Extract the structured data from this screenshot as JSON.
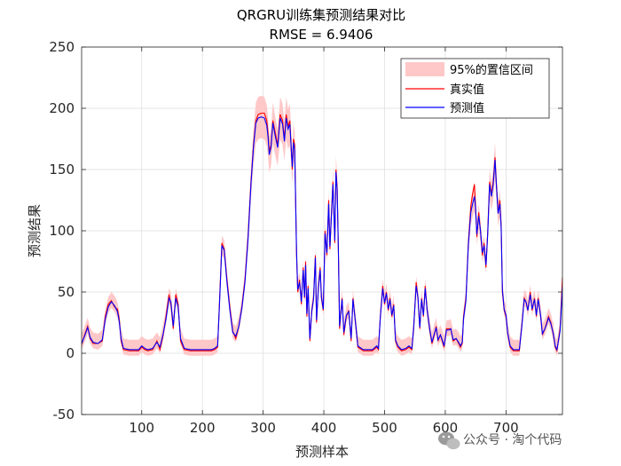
{
  "chart_data": {
    "type": "line",
    "title": "QRGRU训练集预测结果对比",
    "subtitle": "RMSE = 6.9406",
    "xlabel": "预测样本",
    "ylabel": "预测结果",
    "xlim": [
      1,
      793
    ],
    "ylim": [
      -50,
      250
    ],
    "xticks": [
      100,
      200,
      300,
      400,
      500,
      600,
      700
    ],
    "yticks": [
      -50,
      0,
      50,
      100,
      150,
      200,
      250
    ],
    "grid": true,
    "legend_position": "top-right",
    "legend": [
      {
        "label": "95%的置信区间",
        "kind": "band",
        "color": "#ffc8c8"
      },
      {
        "label": "真实值",
        "kind": "line",
        "color": "#ff0000"
      },
      {
        "label": "预测值",
        "kind": "line",
        "color": "#0000ff"
      }
    ],
    "true_values": [
      [
        1,
        7
      ],
      [
        6,
        15
      ],
      [
        11,
        22
      ],
      [
        15,
        12
      ],
      [
        20,
        8
      ],
      [
        28,
        8
      ],
      [
        35,
        10
      ],
      [
        40,
        30
      ],
      [
        45,
        40
      ],
      [
        50,
        43
      ],
      [
        55,
        38
      ],
      [
        60,
        36
      ],
      [
        63,
        28
      ],
      [
        66,
        10
      ],
      [
        70,
        3
      ],
      [
        80,
        2
      ],
      [
        95,
        2
      ],
      [
        100,
        5
      ],
      [
        105,
        3
      ],
      [
        110,
        2
      ],
      [
        118,
        3
      ],
      [
        125,
        10
      ],
      [
        130,
        3
      ],
      [
        135,
        14
      ],
      [
        140,
        30
      ],
      [
        145,
        48
      ],
      [
        148,
        40
      ],
      [
        152,
        20
      ],
      [
        156,
        48
      ],
      [
        160,
        40
      ],
      [
        164,
        10
      ],
      [
        170,
        3
      ],
      [
        180,
        2
      ],
      [
        200,
        2
      ],
      [
        215,
        2
      ],
      [
        220,
        3
      ],
      [
        225,
        5
      ],
      [
        228,
        40
      ],
      [
        232,
        90
      ],
      [
        236,
        85
      ],
      [
        240,
        62
      ],
      [
        245,
        38
      ],
      [
        250,
        18
      ],
      [
        255,
        12
      ],
      [
        260,
        22
      ],
      [
        265,
        38
      ],
      [
        270,
        60
      ],
      [
        275,
        95
      ],
      [
        280,
        140
      ],
      [
        284,
        170
      ],
      [
        288,
        190
      ],
      [
        292,
        195
      ],
      [
        297,
        196
      ],
      [
        302,
        196
      ],
      [
        306,
        190
      ],
      [
        308,
        180
      ],
      [
        310,
        165
      ],
      [
        313,
        170
      ],
      [
        316,
        190
      ],
      [
        320,
        180
      ],
      [
        324,
        170
      ],
      [
        328,
        195
      ],
      [
        332,
        190
      ],
      [
        335,
        175
      ],
      [
        338,
        195
      ],
      [
        341,
        185
      ],
      [
        344,
        190
      ],
      [
        348,
        150
      ],
      [
        350,
        175
      ],
      [
        352,
        170
      ],
      [
        355,
        80
      ],
      [
        357,
        50
      ],
      [
        360,
        60
      ],
      [
        363,
        40
      ],
      [
        366,
        70
      ],
      [
        368,
        45
      ],
      [
        370,
        75
      ],
      [
        372,
        30
      ],
      [
        374,
        55
      ],
      [
        377,
        10
      ],
      [
        380,
        35
      ],
      [
        383,
        45
      ],
      [
        386,
        80
      ],
      [
        388,
        25
      ],
      [
        391,
        55
      ],
      [
        394,
        70
      ],
      [
        396,
        45
      ],
      [
        399,
        35
      ],
      [
        402,
        100
      ],
      [
        405,
        80
      ],
      [
        408,
        125
      ],
      [
        410,
        85
      ],
      [
        412,
        110
      ],
      [
        415,
        140
      ],
      [
        418,
        90
      ],
      [
        420,
        150
      ],
      [
        422,
        135
      ],
      [
        424,
        80
      ],
      [
        426,
        20
      ],
      [
        430,
        45
      ],
      [
        433,
        15
      ],
      [
        437,
        30
      ],
      [
        441,
        35
      ],
      [
        445,
        10
      ],
      [
        448,
        45
      ],
      [
        452,
        25
      ],
      [
        456,
        5
      ],
      [
        465,
        2
      ],
      [
        480,
        2
      ],
      [
        487,
        5
      ],
      [
        490,
        3
      ],
      [
        493,
        30
      ],
      [
        497,
        55
      ],
      [
        500,
        40
      ],
      [
        503,
        50
      ],
      [
        506,
        35
      ],
      [
        509,
        45
      ],
      [
        512,
        30
      ],
      [
        515,
        40
      ],
      [
        518,
        10
      ],
      [
        522,
        5
      ],
      [
        528,
        2
      ],
      [
        535,
        3
      ],
      [
        540,
        5
      ],
      [
        545,
        3
      ],
      [
        548,
        20
      ],
      [
        552,
        58
      ],
      [
        555,
        45
      ],
      [
        558,
        20
      ],
      [
        561,
        45
      ],
      [
        564,
        30
      ],
      [
        567,
        55
      ],
      [
        570,
        35
      ],
      [
        574,
        20
      ],
      [
        578,
        8
      ],
      [
        582,
        15
      ],
      [
        585,
        22
      ],
      [
        588,
        10
      ],
      [
        592,
        15
      ],
      [
        595,
        10
      ],
      [
        598,
        5
      ],
      [
        602,
        20
      ],
      [
        606,
        20
      ],
      [
        609,
        20
      ],
      [
        613,
        10
      ],
      [
        618,
        12
      ],
      [
        622,
        8
      ],
      [
        625,
        5
      ],
      [
        628,
        8
      ],
      [
        630,
        30
      ],
      [
        634,
        45
      ],
      [
        638,
        90
      ],
      [
        642,
        120
      ],
      [
        645,
        130
      ],
      [
        648,
        138
      ],
      [
        650,
        120
      ],
      [
        652,
        95
      ],
      [
        655,
        115
      ],
      [
        658,
        100
      ],
      [
        661,
        80
      ],
      [
        664,
        90
      ],
      [
        667,
        70
      ],
      [
        670,
        100
      ],
      [
        673,
        140
      ],
      [
        676,
        130
      ],
      [
        679,
        140
      ],
      [
        682,
        160
      ],
      [
        684,
        140
      ],
      [
        687,
        115
      ],
      [
        690,
        125
      ],
      [
        692,
        105
      ],
      [
        694,
        50
      ],
      [
        697,
        35
      ],
      [
        700,
        30
      ],
      [
        703,
        15
      ],
      [
        707,
        5
      ],
      [
        712,
        2
      ],
      [
        718,
        2
      ],
      [
        722,
        2
      ],
      [
        726,
        22
      ],
      [
        730,
        45
      ],
      [
        733,
        42
      ],
      [
        736,
        35
      ],
      [
        740,
        50
      ],
      [
        743,
        35
      ],
      [
        747,
        45
      ],
      [
        750,
        30
      ],
      [
        753,
        45
      ],
      [
        757,
        30
      ],
      [
        760,
        15
      ],
      [
        764,
        20
      ],
      [
        767,
        25
      ],
      [
        770,
        30
      ],
      [
        774,
        25
      ],
      [
        778,
        15
      ],
      [
        781,
        5
      ],
      [
        784,
        2
      ],
      [
        789,
        20
      ],
      [
        793,
        62
      ]
    ],
    "predicted_values": [
      [
        1,
        8
      ],
      [
        6,
        14
      ],
      [
        11,
        21
      ],
      [
        15,
        13
      ],
      [
        20,
        9
      ],
      [
        28,
        8
      ],
      [
        35,
        11
      ],
      [
        40,
        28
      ],
      [
        45,
        38
      ],
      [
        50,
        42
      ],
      [
        55,
        39
      ],
      [
        60,
        34
      ],
      [
        63,
        26
      ],
      [
        66,
        12
      ],
      [
        70,
        4
      ],
      [
        80,
        3
      ],
      [
        95,
        3
      ],
      [
        100,
        6
      ],
      [
        105,
        4
      ],
      [
        110,
        3
      ],
      [
        118,
        4
      ],
      [
        125,
        9
      ],
      [
        130,
        5
      ],
      [
        135,
        15
      ],
      [
        140,
        28
      ],
      [
        145,
        45
      ],
      [
        148,
        42
      ],
      [
        152,
        22
      ],
      [
        156,
        45
      ],
      [
        160,
        38
      ],
      [
        164,
        12
      ],
      [
        170,
        4
      ],
      [
        180,
        3
      ],
      [
        200,
        3
      ],
      [
        215,
        3
      ],
      [
        220,
        4
      ],
      [
        225,
        6
      ],
      [
        228,
        38
      ],
      [
        232,
        88
      ],
      [
        236,
        84
      ],
      [
        240,
        60
      ],
      [
        245,
        36
      ],
      [
        250,
        17
      ],
      [
        255,
        14
      ],
      [
        260,
        22
      ],
      [
        265,
        37
      ],
      [
        270,
        58
      ],
      [
        275,
        92
      ],
      [
        280,
        138
      ],
      [
        284,
        168
      ],
      [
        288,
        188
      ],
      [
        292,
        192
      ],
      [
        297,
        193
      ],
      [
        302,
        192
      ],
      [
        306,
        186
      ],
      [
        308,
        177
      ],
      [
        310,
        162
      ],
      [
        313,
        168
      ],
      [
        316,
        188
      ],
      [
        320,
        177
      ],
      [
        324,
        168
      ],
      [
        328,
        192
      ],
      [
        332,
        187
      ],
      [
        335,
        173
      ],
      [
        338,
        192
      ],
      [
        341,
        183
      ],
      [
        344,
        187
      ],
      [
        348,
        152
      ],
      [
        350,
        172
      ],
      [
        352,
        166
      ],
      [
        355,
        82
      ],
      [
        357,
        52
      ],
      [
        360,
        58
      ],
      [
        363,
        42
      ],
      [
        366,
        68
      ],
      [
        368,
        46
      ],
      [
        370,
        72
      ],
      [
        372,
        32
      ],
      [
        374,
        53
      ],
      [
        377,
        12
      ],
      [
        380,
        34
      ],
      [
        383,
        44
      ],
      [
        386,
        78
      ],
      [
        388,
        27
      ],
      [
        391,
        53
      ],
      [
        394,
        68
      ],
      [
        396,
        46
      ],
      [
        399,
        36
      ],
      [
        402,
        98
      ],
      [
        405,
        82
      ],
      [
        408,
        122
      ],
      [
        410,
        87
      ],
      [
        412,
        108
      ],
      [
        415,
        138
      ],
      [
        418,
        92
      ],
      [
        420,
        148
      ],
      [
        422,
        133
      ],
      [
        424,
        82
      ],
      [
        426,
        22
      ],
      [
        430,
        44
      ],
      [
        433,
        17
      ],
      [
        437,
        31
      ],
      [
        441,
        34
      ],
      [
        445,
        12
      ],
      [
        448,
        44
      ],
      [
        452,
        26
      ],
      [
        456,
        6
      ],
      [
        465,
        3
      ],
      [
        480,
        3
      ],
      [
        487,
        6
      ],
      [
        490,
        4
      ],
      [
        493,
        29
      ],
      [
        497,
        53
      ],
      [
        500,
        41
      ],
      [
        503,
        49
      ],
      [
        506,
        36
      ],
      [
        509,
        44
      ],
      [
        512,
        31
      ],
      [
        515,
        39
      ],
      [
        518,
        11
      ],
      [
        522,
        6
      ],
      [
        528,
        3
      ],
      [
        535,
        4
      ],
      [
        540,
        6
      ],
      [
        545,
        4
      ],
      [
        548,
        21
      ],
      [
        552,
        55
      ],
      [
        555,
        46
      ],
      [
        558,
        21
      ],
      [
        561,
        44
      ],
      [
        564,
        31
      ],
      [
        567,
        53
      ],
      [
        570,
        36
      ],
      [
        574,
        21
      ],
      [
        578,
        9
      ],
      [
        582,
        16
      ],
      [
        585,
        21
      ],
      [
        588,
        11
      ],
      [
        592,
        15
      ],
      [
        595,
        11
      ],
      [
        598,
        6
      ],
      [
        602,
        19
      ],
      [
        606,
        19
      ],
      [
        609,
        20
      ],
      [
        613,
        11
      ],
      [
        618,
        12
      ],
      [
        622,
        9
      ],
      [
        625,
        6
      ],
      [
        628,
        9
      ],
      [
        630,
        28
      ],
      [
        634,
        43
      ],
      [
        638,
        88
      ],
      [
        642,
        115
      ],
      [
        645,
        122
      ],
      [
        648,
        128
      ],
      [
        650,
        118
      ],
      [
        652,
        97
      ],
      [
        655,
        112
      ],
      [
        658,
        100
      ],
      [
        661,
        82
      ],
      [
        664,
        88
      ],
      [
        667,
        72
      ],
      [
        670,
        98
      ],
      [
        673,
        138
      ],
      [
        676,
        128
      ],
      [
        679,
        138
      ],
      [
        682,
        158
      ],
      [
        684,
        139
      ],
      [
        687,
        114
      ],
      [
        690,
        122
      ],
      [
        692,
        103
      ],
      [
        694,
        52
      ],
      [
        697,
        36
      ],
      [
        700,
        31
      ],
      [
        703,
        16
      ],
      [
        707,
        6
      ],
      [
        712,
        3
      ],
      [
        718,
        3
      ],
      [
        722,
        3
      ],
      [
        726,
        21
      ],
      [
        730,
        44
      ],
      [
        733,
        42
      ],
      [
        736,
        35
      ],
      [
        740,
        48
      ],
      [
        743,
        36
      ],
      [
        747,
        44
      ],
      [
        750,
        31
      ],
      [
        753,
        44
      ],
      [
        757,
        31
      ],
      [
        760,
        16
      ],
      [
        764,
        20
      ],
      [
        767,
        24
      ],
      [
        770,
        29
      ],
      [
        774,
        24
      ],
      [
        778,
        16
      ],
      [
        781,
        6
      ],
      [
        784,
        3
      ],
      [
        789,
        18
      ],
      [
        793,
        55
      ]
    ]
  },
  "watermark": {
    "icon": "wechat-icon",
    "text": "公众号 · 淘个代码"
  }
}
